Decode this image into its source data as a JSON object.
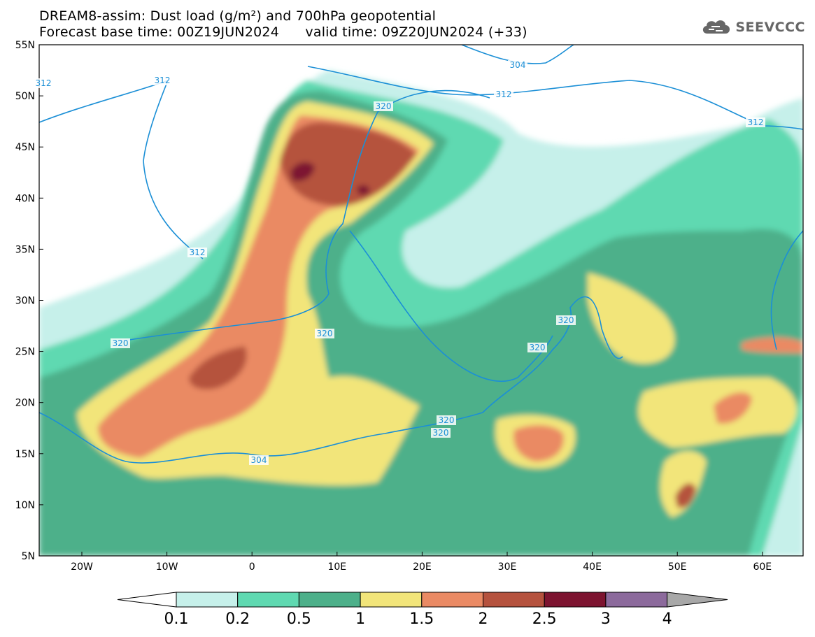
{
  "header": {
    "title_line1": "DREAM8-assim: Dust load (g/m²) and 700hPa geopotential",
    "title_line2": "Forecast base time: 00Z19JUN2024      valid time: 09Z20JUN2024 (+33)",
    "logo_text": "SEEVCCC"
  },
  "map": {
    "lat_ticks": [
      "55N",
      "50N",
      "45N",
      "40N",
      "35N",
      "30N",
      "25N",
      "20N",
      "15N",
      "10N",
      "5N"
    ],
    "lon_ticks": [
      "20W",
      "10W",
      "0",
      "10E",
      "20E",
      "30E",
      "40E",
      "50E",
      "60E"
    ],
    "contour_labels": [
      "304",
      "312",
      "312",
      "312",
      "312",
      "312",
      "320",
      "320",
      "320",
      "320",
      "320",
      "320",
      "320",
      "304"
    ],
    "colors": {
      "c01": "#c6f0ea",
      "c02": "#5fd9b1",
      "c05": "#4db08a",
      "c10": "#f2e57a",
      "c15": "#ea8a64",
      "c20": "#b5523e",
      "c25": "#7d1430",
      "c30": "#8c6a9c",
      "contour": "#1b8fd6"
    }
  },
  "colorbar": {
    "labels": [
      "0.1",
      "0.2",
      "0.5",
      "1",
      "1.5",
      "2",
      "2.5",
      "3",
      "4"
    ],
    "colors": [
      "#ffffff",
      "#c6f0ea",
      "#5fd9b1",
      "#4db08a",
      "#f2e57a",
      "#ea8a64",
      "#b5523e",
      "#7d1430",
      "#8c6a9c",
      "#a8a8a8"
    ]
  }
}
